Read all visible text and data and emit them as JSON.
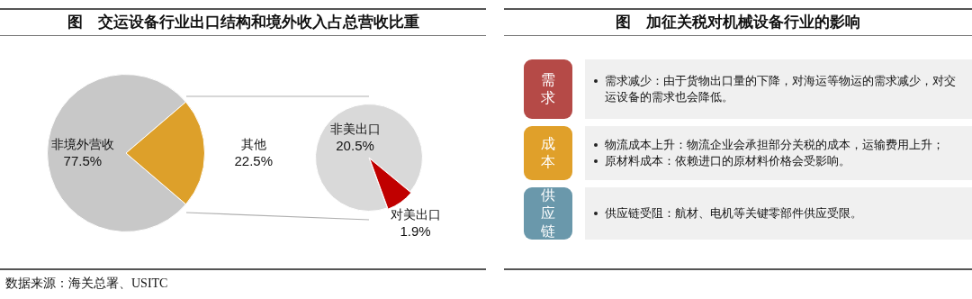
{
  "chart_data": [
    {
      "type": "pie",
      "title": "图　交运设备行业出口结构和境外收入占总营收比重",
      "categories": [
        "非境外营收",
        "其他"
      ],
      "values": [
        77.5,
        22.5
      ],
      "colors": [
        "#c8c8c8",
        "#dda02a"
      ],
      "legend": false,
      "value_labels": [
        "77.5%",
        "22.5%"
      ],
      "annotations": [
        "数据来源：海关总署、USITC"
      ]
    },
    {
      "type": "pie",
      "categories": [
        "非美出口",
        "对美出口"
      ],
      "values": [
        20.5,
        1.9
      ],
      "colors": [
        "#d9d9d9",
        "#c00000"
      ],
      "legend": false,
      "value_labels": [
        "20.5%",
        "1.9%"
      ]
    },
    {
      "type": "other",
      "title": "图　加征关税对机械设备行业的影响",
      "categories": [
        "需求",
        "成本",
        "供应链"
      ],
      "colors": [
        "#b54a47",
        "#e0a02a",
        "#6a98ab"
      ],
      "annotations": [
        "需求减少：由于货物出口量的下降，对海运等物运的需求减少，对交运设备的需求也会降低。",
        [
          "物流成本上升：物流企业会承担部分关税的成本，运输费用上升；",
          "原材料成本：依赖进口的原材料价格会受影响。"
        ],
        "供应链受阻：航材、电机等关键零部件供应受限。"
      ]
    }
  ]
}
